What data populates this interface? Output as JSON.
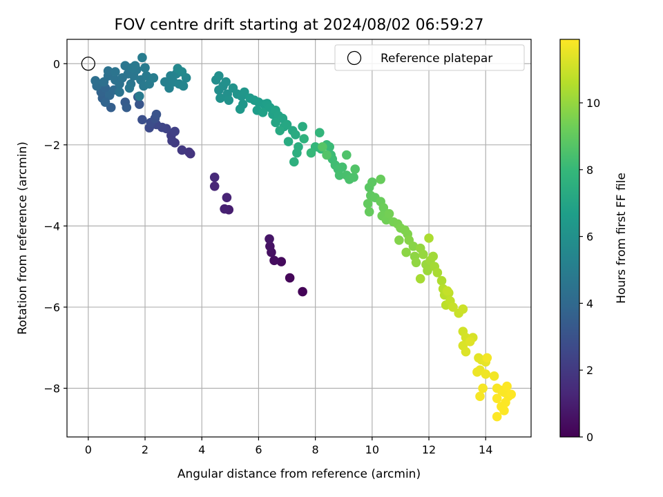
{
  "chart_data": {
    "type": "scatter",
    "title": "FOV centre drift starting at 2024/08/02 06:59:27",
    "xlabel": "Angular distance from reference (arcmin)",
    "ylabel": "Rotation from reference (arcmin)",
    "xlim": [
      -0.75,
      15.6
    ],
    "ylim": [
      -9.2,
      0.6
    ],
    "xticks": [
      0,
      2,
      4,
      6,
      8,
      10,
      12,
      14
    ],
    "yticks": [
      0,
      -2,
      -4,
      -6,
      -8
    ],
    "grid": true,
    "colormap": "viridis",
    "colorbar": {
      "label": "Hours from first FF file",
      "range": [
        0,
        11.9
      ],
      "ticks": [
        0,
        2,
        4,
        6,
        8,
        10
      ]
    },
    "legend": {
      "position": "top-right",
      "entries": [
        {
          "label": "Reference platepar",
          "marker": "open-circle"
        }
      ]
    },
    "reference_point": {
      "x": 0,
      "y": 0
    },
    "points_columns": [
      "x",
      "y",
      "hours"
    ],
    "points": [
      [
        7.55,
        -5.62,
        0.1
      ],
      [
        7.1,
        -5.28,
        0.2
      ],
      [
        6.8,
        -4.88,
        0.3
      ],
      [
        6.55,
        -4.85,
        0.4
      ],
      [
        6.45,
        -4.65,
        0.5
      ],
      [
        6.4,
        -4.5,
        0.6
      ],
      [
        6.38,
        -4.32,
        0.7
      ],
      [
        4.95,
        -3.6,
        1.0
      ],
      [
        4.8,
        -3.58,
        1.1
      ],
      [
        4.88,
        -3.3,
        1.2
      ],
      [
        4.45,
        -3.02,
        1.3
      ],
      [
        4.45,
        -2.8,
        1.4
      ],
      [
        3.6,
        -2.22,
        1.8
      ],
      [
        3.55,
        -2.18,
        1.9
      ],
      [
        3.3,
        -2.13,
        2.0
      ],
      [
        3.05,
        -1.95,
        2.1
      ],
      [
        2.95,
        -1.9,
        2.15
      ],
      [
        2.92,
        -1.77,
        2.2
      ],
      [
        3.05,
        -1.67,
        2.3
      ],
      [
        2.75,
        -1.6,
        2.4
      ],
      [
        2.6,
        -1.57,
        2.5
      ],
      [
        2.4,
        -1.5,
        2.6
      ],
      [
        2.15,
        -1.58,
        2.7
      ],
      [
        2.2,
        -1.45,
        2.8
      ],
      [
        1.9,
        -1.38,
        2.9
      ],
      [
        2.35,
        -1.35,
        3.0
      ],
      [
        2.4,
        -1.25,
        3.1
      ],
      [
        1.8,
        -1.0,
        3.2
      ],
      [
        1.75,
        -0.82,
        3.3
      ],
      [
        1.3,
        -0.95,
        3.4
      ],
      [
        1.35,
        -1.08,
        3.5
      ],
      [
        0.8,
        -1.08,
        3.6
      ],
      [
        0.5,
        -0.85,
        3.7
      ],
      [
        0.45,
        -0.7,
        3.8
      ],
      [
        0.6,
        -0.6,
        3.9
      ],
      [
        0.75,
        -0.78,
        4.0
      ],
      [
        0.9,
        -0.65,
        4.1
      ],
      [
        0.3,
        -0.55,
        4.2
      ],
      [
        0.25,
        -0.42,
        4.3
      ],
      [
        0.55,
        -0.45,
        4.35
      ],
      [
        0.7,
        -0.3,
        4.4
      ],
      [
        0.95,
        -0.4,
        4.45
      ],
      [
        1.1,
        -0.5,
        4.5
      ],
      [
        1.2,
        -0.35,
        4.55
      ],
      [
        1.4,
        -0.25,
        4.6
      ],
      [
        1.5,
        -0.5,
        4.65
      ],
      [
        1.6,
        -0.3,
        4.7
      ],
      [
        1.7,
        -0.15,
        4.75
      ],
      [
        1.85,
        -0.4,
        4.8
      ],
      [
        1.95,
        -0.55,
        4.85
      ],
      [
        2.05,
        -0.3,
        4.9
      ],
      [
        2.15,
        -0.5,
        4.95
      ],
      [
        1.9,
        0.15,
        5.0
      ],
      [
        0.7,
        -0.18,
        4.5
      ],
      [
        0.95,
        -0.2,
        4.6
      ],
      [
        1.3,
        -0.05,
        4.7
      ],
      [
        1.55,
        -0.1,
        4.8
      ],
      [
        1.1,
        -0.7,
        4.55
      ],
      [
        1.8,
        -0.8,
        4.9
      ],
      [
        2.3,
        -0.35,
        5.05
      ],
      [
        1.45,
        -0.6,
        4.75
      ],
      [
        0.6,
        -0.95,
        3.85
      ],
      [
        1.65,
        -0.05,
        4.85
      ],
      [
        2.0,
        -0.1,
        4.95
      ],
      [
        2.7,
        -0.45,
        5.2
      ],
      [
        2.85,
        -0.6,
        5.25
      ],
      [
        3.0,
        -0.45,
        5.3
      ],
      [
        3.1,
        -0.25,
        5.35
      ],
      [
        3.2,
        -0.5,
        5.4
      ],
      [
        3.35,
        -0.55,
        5.45
      ],
      [
        3.45,
        -0.35,
        5.5
      ],
      [
        3.15,
        -0.12,
        5.55
      ],
      [
        3.3,
        -0.2,
        5.6
      ],
      [
        2.9,
        -0.3,
        5.3
      ],
      [
        4.5,
        -0.4,
        5.8
      ],
      [
        4.6,
        -0.65,
        5.85
      ],
      [
        4.75,
        -0.55,
        5.9
      ],
      [
        4.9,
        -0.75,
        5.95
      ],
      [
        4.65,
        -0.85,
        6.0
      ],
      [
        4.95,
        -0.9,
        6.05
      ],
      [
        4.6,
        -0.3,
        5.9
      ],
      [
        4.85,
        -0.45,
        5.95
      ],
      [
        5.1,
        -0.6,
        6.1
      ],
      [
        5.25,
        -0.75,
        6.15
      ],
      [
        5.4,
        -0.8,
        6.2
      ],
      [
        5.5,
        -0.7,
        6.25
      ],
      [
        5.45,
        -1.0,
        6.3
      ],
      [
        5.35,
        -1.12,
        6.35
      ],
      [
        5.7,
        -0.85,
        6.4
      ],
      [
        5.85,
        -0.9,
        6.45
      ],
      [
        6.0,
        -0.95,
        6.5
      ],
      [
        5.95,
        -1.15,
        6.55
      ],
      [
        6.2,
        -1.0,
        6.6
      ],
      [
        6.3,
        -0.98,
        6.65
      ],
      [
        6.4,
        -1.08,
        6.7
      ],
      [
        6.15,
        -1.2,
        6.75
      ],
      [
        6.5,
        -1.25,
        6.8
      ],
      [
        6.6,
        -1.15,
        6.85
      ],
      [
        6.7,
        -1.28,
        6.9
      ],
      [
        6.85,
        -1.35,
        6.95
      ],
      [
        6.6,
        -1.45,
        7.0
      ],
      [
        6.9,
        -1.55,
        7.05
      ],
      [
        7.0,
        -1.5,
        7.1
      ],
      [
        7.2,
        -1.65,
        7.15
      ],
      [
        6.75,
        -1.65,
        7.2
      ],
      [
        7.3,
        -1.75,
        7.25
      ],
      [
        7.05,
        -1.92,
        7.3
      ],
      [
        7.55,
        -1.55,
        7.35
      ],
      [
        7.4,
        -2.05,
        7.4
      ],
      [
        7.35,
        -2.2,
        7.45
      ],
      [
        7.25,
        -2.42,
        7.5
      ],
      [
        7.6,
        -1.85,
        7.6
      ],
      [
        8.15,
        -1.7,
        7.8
      ],
      [
        8.0,
        -2.05,
        7.85
      ],
      [
        8.2,
        -2.1,
        7.9
      ],
      [
        7.85,
        -2.2,
        7.95
      ],
      [
        8.4,
        -2.0,
        8.0
      ],
      [
        8.5,
        -2.05,
        8.05
      ],
      [
        8.55,
        -2.25,
        8.1
      ],
      [
        8.6,
        -2.35,
        8.15
      ],
      [
        8.7,
        -2.5,
        8.2
      ],
      [
        8.8,
        -2.6,
        8.25
      ],
      [
        8.95,
        -2.55,
        8.3
      ],
      [
        8.85,
        -2.75,
        8.35
      ],
      [
        9.1,
        -2.75,
        8.4
      ],
      [
        9.2,
        -2.85,
        8.45
      ],
      [
        9.35,
        -2.8,
        8.5
      ],
      [
        9.1,
        -2.25,
        8.55
      ],
      [
        9.4,
        -2.6,
        8.6
      ],
      [
        8.4,
        -2.25,
        8.65
      ],
      [
        8.25,
        -2.05,
        8.7
      ],
      [
        9.9,
        -3.05,
        8.8
      ],
      [
        10.0,
        -2.92,
        8.85
      ],
      [
        9.95,
        -3.25,
        8.9
      ],
      [
        10.1,
        -3.3,
        8.95
      ],
      [
        9.85,
        -3.45,
        9.0
      ],
      [
        9.9,
        -3.65,
        9.05
      ],
      [
        10.3,
        -2.85,
        9.1
      ],
      [
        10.3,
        -3.4,
        9.15
      ],
      [
        10.4,
        -3.55,
        9.2
      ],
      [
        10.35,
        -3.75,
        9.25
      ],
      [
        10.5,
        -3.85,
        9.3
      ],
      [
        10.6,
        -3.7,
        9.35
      ],
      [
        10.75,
        -3.9,
        9.4
      ],
      [
        10.9,
        -3.95,
        9.45
      ],
      [
        11.0,
        -4.05,
        9.5
      ],
      [
        11.15,
        -4.1,
        9.55
      ],
      [
        11.25,
        -4.2,
        9.6
      ],
      [
        10.95,
        -4.35,
        9.65
      ],
      [
        11.3,
        -4.35,
        9.7
      ],
      [
        11.45,
        -4.5,
        9.75
      ],
      [
        11.2,
        -4.65,
        9.8
      ],
      [
        11.5,
        -4.75,
        9.85
      ],
      [
        11.55,
        -4.9,
        9.9
      ],
      [
        11.7,
        -4.55,
        9.95
      ],
      [
        11.8,
        -4.7,
        10.0
      ],
      [
        11.9,
        -4.95,
        10.05
      ],
      [
        11.95,
        -5.1,
        10.1
      ],
      [
        12.05,
        -4.85,
        10.15
      ],
      [
        12.15,
        -4.75,
        10.2
      ],
      [
        12.2,
        -5.0,
        10.25
      ],
      [
        11.7,
        -5.3,
        10.3
      ],
      [
        12.3,
        -5.15,
        10.35
      ],
      [
        12.0,
        -4.3,
        10.4
      ],
      [
        12.45,
        -5.35,
        10.45
      ],
      [
        12.5,
        -5.55,
        10.6
      ],
      [
        12.55,
        -5.7,
        10.65
      ],
      [
        12.6,
        -5.95,
        10.7
      ],
      [
        12.7,
        -5.65,
        10.75
      ],
      [
        12.75,
        -5.85,
        10.8
      ],
      [
        12.65,
        -5.6,
        10.85
      ],
      [
        12.85,
        -6.0,
        10.9
      ],
      [
        13.05,
        -6.15,
        10.95
      ],
      [
        13.2,
        -6.05,
        11.0
      ],
      [
        13.2,
        -6.6,
        11.1
      ],
      [
        13.3,
        -6.75,
        11.15
      ],
      [
        13.55,
        -6.75,
        11.2
      ],
      [
        13.2,
        -6.95,
        11.25
      ],
      [
        13.3,
        -7.1,
        11.3
      ],
      [
        13.45,
        -6.85,
        11.35
      ],
      [
        13.75,
        -7.25,
        11.4
      ],
      [
        13.85,
        -7.3,
        11.45
      ],
      [
        14.0,
        -7.35,
        11.5
      ],
      [
        13.8,
        -7.55,
        11.55
      ],
      [
        13.7,
        -7.6,
        11.6
      ],
      [
        14.0,
        -7.65,
        11.65
      ],
      [
        14.3,
        -7.7,
        11.7
      ],
      [
        14.05,
        -7.25,
        11.72
      ],
      [
        13.9,
        -8.0,
        11.75
      ],
      [
        13.8,
        -8.2,
        11.78
      ],
      [
        14.4,
        -8.0,
        11.8
      ],
      [
        14.55,
        -8.05,
        11.82
      ],
      [
        14.65,
        -8.1,
        11.84
      ],
      [
        14.8,
        -8.2,
        11.86
      ],
      [
        14.7,
        -8.35,
        11.88
      ],
      [
        14.55,
        -8.45,
        11.88
      ],
      [
        14.4,
        -8.25,
        11.88
      ],
      [
        14.65,
        -8.55,
        11.89
      ],
      [
        14.4,
        -8.7,
        11.9
      ],
      [
        14.9,
        -8.15,
        11.9
      ],
      [
        14.75,
        -7.95,
        11.9
      ]
    ]
  }
}
